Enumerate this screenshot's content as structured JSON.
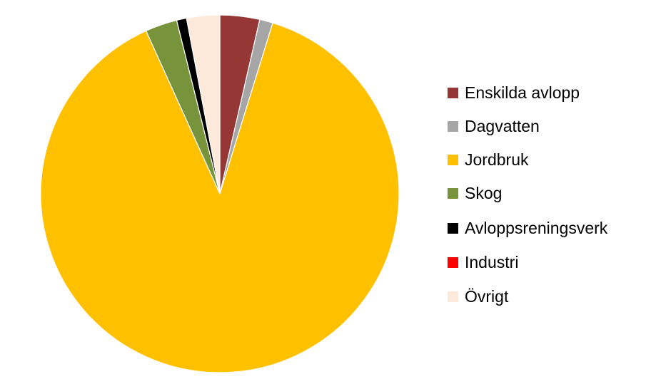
{
  "chart_data": {
    "type": "pie",
    "title": "",
    "start_angle_deg": 0,
    "direction": "clockwise",
    "legend_position": "right",
    "slices": [
      {
        "label": "Enskilda avlopp",
        "value": 3.6,
        "color": "#953735"
      },
      {
        "label": "Dagvatten",
        "value": 1.2,
        "color": "#a6a6a6"
      },
      {
        "label": "Jordbruk",
        "value": 89.0,
        "color": "#ffc000"
      },
      {
        "label": "Skog",
        "value": 2.9,
        "color": "#77933c"
      },
      {
        "label": "Avloppsreningsverk",
        "value": 0.9,
        "color": "#000000"
      },
      {
        "label": "Industri",
        "value": 0.0,
        "color": "#ff0000"
      },
      {
        "label": "Övrigt",
        "value": 3.0,
        "color": "#fde9d9"
      }
    ]
  }
}
